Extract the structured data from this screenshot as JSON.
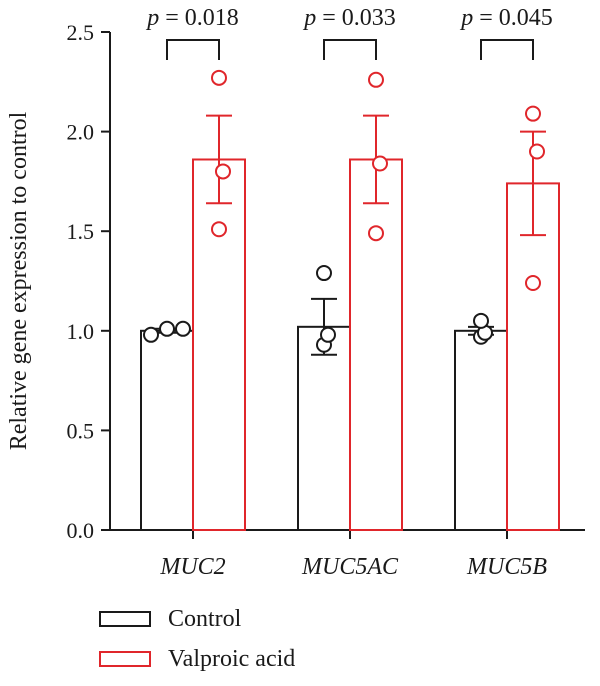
{
  "chart_data": {
    "type": "bar",
    "categories": [
      "MUC2",
      "MUC5AC",
      "MUC5B"
    ],
    "ylabel": "Relative gene expression to control",
    "ylim": [
      0,
      2.5
    ],
    "yticks": [
      "0.0",
      "0.5",
      "1.0",
      "1.5",
      "2.0",
      "2.5"
    ],
    "grid": false,
    "legend_position": "bottom-left",
    "series": [
      {
        "name": "Control",
        "color": "#1a1a1a",
        "values": [
          1.0,
          1.02,
          1.0
        ],
        "sem": [
          0.01,
          0.14,
          0.02
        ],
        "points": [
          [
            0.98,
            1.01,
            1.01
          ],
          [
            0.93,
            0.98,
            1.29
          ],
          [
            0.97,
            0.99,
            1.05
          ]
        ]
      },
      {
        "name": "Valproic acid",
        "color": "#e0262b",
        "values": [
          1.86,
          1.86,
          1.74
        ],
        "sem": [
          0.22,
          0.22,
          0.26
        ],
        "points": [
          [
            1.51,
            1.8,
            2.27
          ],
          [
            1.49,
            1.84,
            2.26
          ],
          [
            1.24,
            1.9,
            2.09
          ]
        ]
      }
    ],
    "comparisons": [
      {
        "p_symbol": "p",
        "p_text": "= 0.018"
      },
      {
        "p_symbol": "p",
        "p_text": "= 0.033"
      },
      {
        "p_symbol": "p",
        "p_text": "= 0.045"
      }
    ]
  }
}
